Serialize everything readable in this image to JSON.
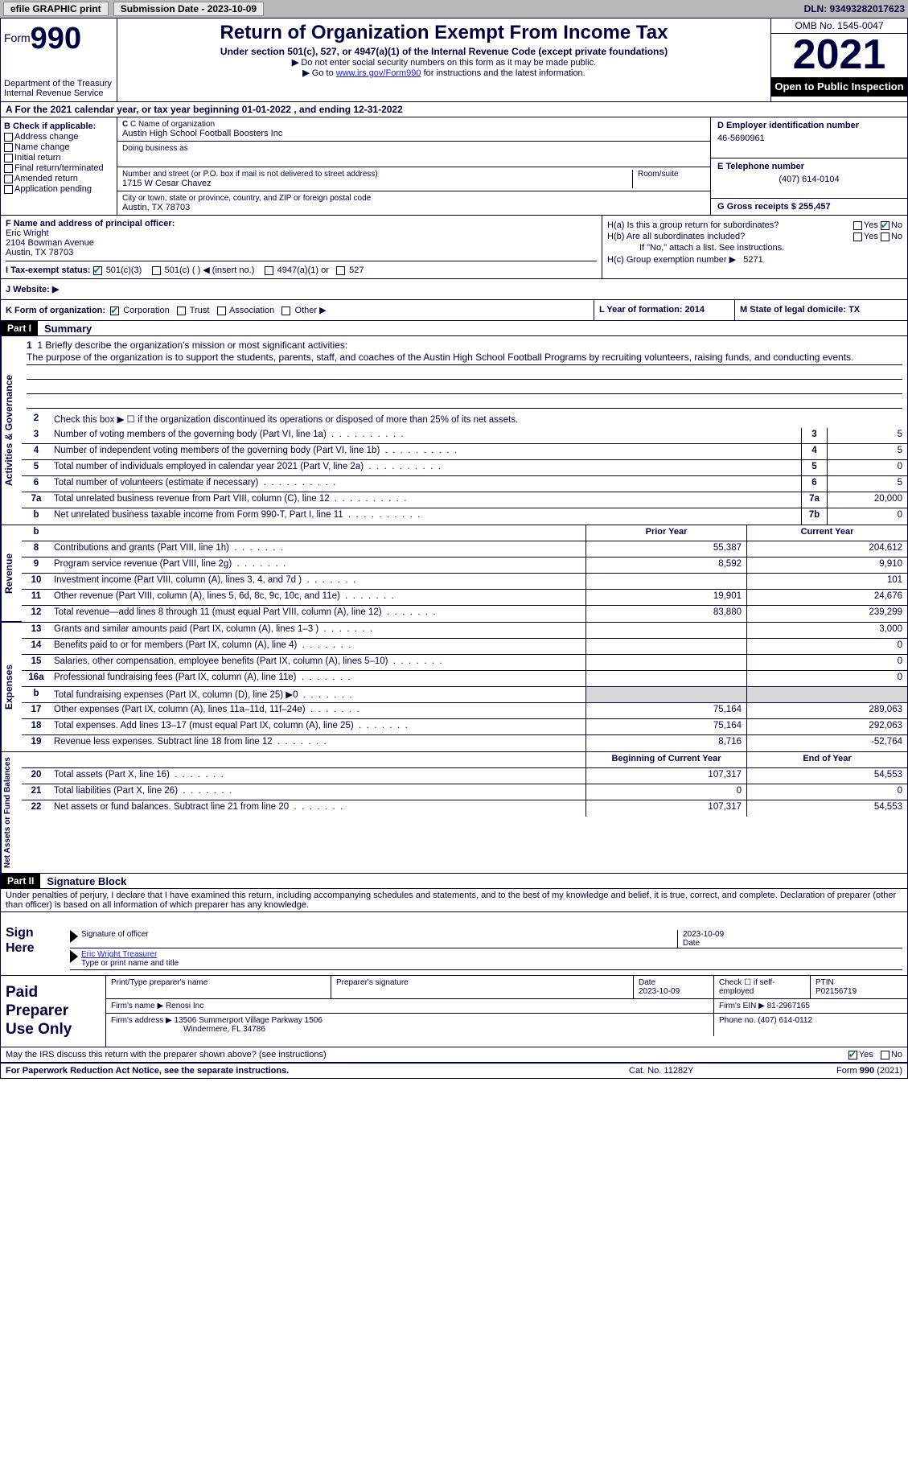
{
  "topbar": {
    "efile": "efile GRAPHIC print",
    "submission": "Submission Date - 2023-10-09",
    "dln": "DLN: 93493282017623"
  },
  "header": {
    "form_label": "Form",
    "form_num": "990",
    "title": "Return of Organization Exempt From Income Tax",
    "sub1": "Under section 501(c), 527, or 4947(a)(1) of the Internal Revenue Code (except private foundations)",
    "sub2a": "Do not enter social security numbers on this form as it may be made public.",
    "sub2b_pre": "Go to ",
    "sub2b_link": "www.irs.gov/Form990",
    "sub2b_post": " for instructions and the latest information.",
    "dept": "Department of the Treasury",
    "irs": "Internal Revenue Service",
    "omb": "OMB No. 1545-0047",
    "year": "2021",
    "inspection": "Open to Public Inspection"
  },
  "row_a": "A For the 2021 calendar year, or tax year beginning 01-01-2022   , and ending 12-31-2022",
  "section_b": {
    "title": "B Check if applicable:",
    "items": [
      "Address change",
      "Name change",
      "Initial return",
      "Final return/terminated",
      "Amended return",
      "Application pending"
    ]
  },
  "section_c": {
    "name_label": "C Name of organization",
    "name": "Austin High School Football Boosters Inc",
    "dba_label": "Doing business as",
    "addr_label": "Number and street (or P.O. box if mail is not delivered to street address)",
    "room_label": "Room/suite",
    "addr": "1715 W Cesar Chavez",
    "city_label": "City or town, state or province, country, and ZIP or foreign postal code",
    "city": "Austin, TX  78703"
  },
  "section_d": {
    "label": "D Employer identification number",
    "value": "46-5690961"
  },
  "section_e": {
    "label": "E Telephone number",
    "value": "(407) 614-0104"
  },
  "section_g": {
    "label": "G Gross receipts $ 255,457"
  },
  "section_f": {
    "label": "F  Name and address of principal officer:",
    "name": "Eric Wright",
    "addr1": "2104 Bowman Avenue",
    "addr2": "Austin, TX  78703"
  },
  "section_h": {
    "ha": "H(a)  Is this a group return for subordinates?",
    "hb": "H(b)  Are all subordinates included?",
    "hb_note": "If \"No,\" attach a list. See instructions.",
    "hc": "H(c)  Group exemption number ▶",
    "hc_val": "5271",
    "yes": "Yes",
    "no": "No"
  },
  "row_i": {
    "label": "I   Tax-exempt status:",
    "opts": [
      "501(c)(3)",
      "501(c) (  ) ◀ (insert no.)",
      "4947(a)(1) or",
      "527"
    ]
  },
  "row_j": {
    "label": "J   Website: ▶"
  },
  "row_k": {
    "label": "K Form of organization:",
    "opts": [
      "Corporation",
      "Trust",
      "Association",
      "Other ▶"
    ]
  },
  "row_l": "L Year of formation: 2014",
  "row_m": "M State of legal domicile: TX",
  "part1": {
    "header": "Part I",
    "title": "Summary"
  },
  "mission": {
    "label": "1  Briefly describe the organization's mission or most significant activities:",
    "text": "The purpose of the organization is to support the students, parents, staff, and coaches of the Austin High School Football Programs by recruiting volunteers, raising funds, and conducting events."
  },
  "line2": "Check this box ▶ ☐  if the organization discontinued its operations or disposed of more than 25% of its net assets.",
  "governance_rows": [
    {
      "n": "3",
      "t": "Number of voting members of the governing body (Part VI, line 1a)",
      "box": "3",
      "v": "5"
    },
    {
      "n": "4",
      "t": "Number of independent voting members of the governing body (Part VI, line 1b)",
      "box": "4",
      "v": "5"
    },
    {
      "n": "5",
      "t": "Total number of individuals employed in calendar year 2021 (Part V, line 2a)",
      "box": "5",
      "v": "0"
    },
    {
      "n": "6",
      "t": "Total number of volunteers (estimate if necessary)",
      "box": "6",
      "v": "5"
    },
    {
      "n": "7a",
      "t": "Total unrelated business revenue from Part VIII, column (C), line 12",
      "box": "7a",
      "v": "20,000"
    },
    {
      "n": "b",
      "t": "Net unrelated business taxable income from Form 990-T, Part I, line 11",
      "box": "7b",
      "v": "0"
    }
  ],
  "prior_current": {
    "prior": "Prior Year",
    "current": "Current Year"
  },
  "revenue_rows": [
    {
      "n": "8",
      "t": "Contributions and grants (Part VIII, line 1h)",
      "p": "55,387",
      "c": "204,612"
    },
    {
      "n": "9",
      "t": "Program service revenue (Part VIII, line 2g)",
      "p": "8,592",
      "c": "9,910"
    },
    {
      "n": "10",
      "t": "Investment income (Part VIII, column (A), lines 3, 4, and 7d )",
      "p": "",
      "c": "101"
    },
    {
      "n": "11",
      "t": "Other revenue (Part VIII, column (A), lines 5, 6d, 8c, 9c, 10c, and 11e)",
      "p": "19,901",
      "c": "24,676"
    },
    {
      "n": "12",
      "t": "Total revenue—add lines 8 through 11 (must equal Part VIII, column (A), line 12)",
      "p": "83,880",
      "c": "239,299"
    }
  ],
  "expense_rows": [
    {
      "n": "13",
      "t": "Grants and similar amounts paid (Part IX, column (A), lines 1–3 )",
      "p": "",
      "c": "3,000"
    },
    {
      "n": "14",
      "t": "Benefits paid to or for members (Part IX, column (A), line 4)",
      "p": "",
      "c": "0"
    },
    {
      "n": "15",
      "t": "Salaries, other compensation, employee benefits (Part IX, column (A), lines 5–10)",
      "p": "",
      "c": "0"
    },
    {
      "n": "16a",
      "t": "Professional fundraising fees (Part IX, column (A), line 11e)",
      "p": "",
      "c": "0"
    },
    {
      "n": "b",
      "t": "Total fundraising expenses (Part IX, column (D), line 25) ▶0",
      "p": "shaded",
      "c": "shaded"
    },
    {
      "n": "17",
      "t": "Other expenses (Part IX, column (A), lines 11a–11d, 11f–24e)",
      "p": "75,164",
      "c": "289,063"
    },
    {
      "n": "18",
      "t": "Total expenses. Add lines 13–17 (must equal Part IX, column (A), line 25)",
      "p": "75,164",
      "c": "292,063"
    },
    {
      "n": "19",
      "t": "Revenue less expenses. Subtract line 18 from line 12",
      "p": "8,716",
      "c": "-52,764"
    }
  ],
  "netassets_header": {
    "p": "Beginning of Current Year",
    "c": "End of Year"
  },
  "netassets_rows": [
    {
      "n": "20",
      "t": "Total assets (Part X, line 16)",
      "p": "107,317",
      "c": "54,553"
    },
    {
      "n": "21",
      "t": "Total liabilities (Part X, line 26)",
      "p": "0",
      "c": "0"
    },
    {
      "n": "22",
      "t": "Net assets or fund balances. Subtract line 21 from line 20",
      "p": "107,317",
      "c": "54,553"
    }
  ],
  "part2": {
    "header": "Part II",
    "title": "Signature Block"
  },
  "penalty": "Under penalties of perjury, I declare that I have examined this return, including accompanying schedules and statements, and to the best of my knowledge and belief, it is true, correct, and complete. Declaration of preparer (other than officer) is based on all information of which preparer has any knowledge.",
  "sign": {
    "left": "Sign Here",
    "sig_label": "Signature of officer",
    "date": "2023-10-09",
    "date_label": "Date",
    "name": "Eric Wright Treasurer",
    "name_label": "Type or print name and title"
  },
  "paid": {
    "left": "Paid Preparer Use Only",
    "row1": {
      "c1": "Print/Type preparer's name",
      "c2": "Preparer's signature",
      "c3_label": "Date",
      "c3": "2023-10-09",
      "c4_label": "Check ☐ if self-employed",
      "c5_label": "PTIN",
      "c5": "P02156719"
    },
    "row2": {
      "c1_label": "Firm's name     ▶",
      "c1": "Renosi Inc",
      "c2_label": "Firm's EIN ▶",
      "c2": "81-2967165"
    },
    "row3": {
      "c1_label": "Firm's address ▶",
      "c1a": "13506 Summerport Village Parkway 1506",
      "c1b": "Windermere, FL  34786",
      "c2_label": "Phone no.",
      "c2": "(407) 614-0112"
    }
  },
  "discuss": {
    "text": "May the IRS discuss this return with the preparer shown above? (see instructions)",
    "yes": "Yes",
    "no": "No"
  },
  "footer": {
    "left": "For Paperwork Reduction Act Notice, see the separate instructions.",
    "mid": "Cat. No. 11282Y",
    "right": "Form 990 (2021)"
  },
  "side_labels": {
    "gov": "Activities & Governance",
    "rev": "Revenue",
    "exp": "Expenses",
    "net": "Net Assets or Fund Balances"
  }
}
